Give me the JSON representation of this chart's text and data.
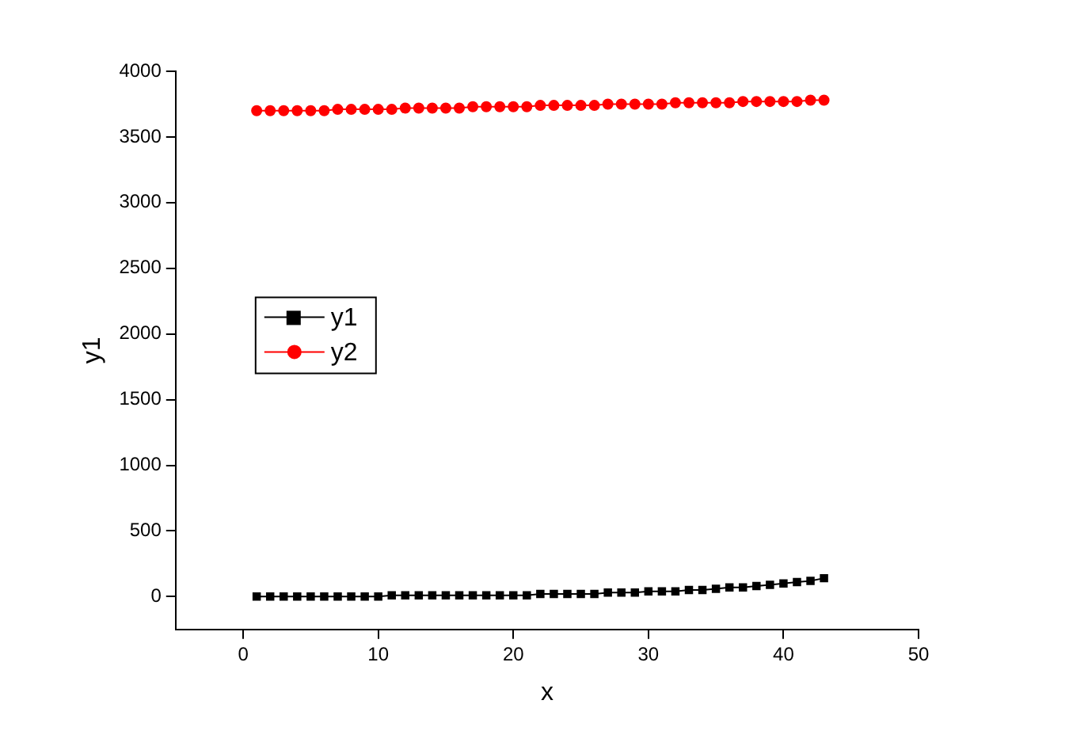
{
  "chart_data": {
    "type": "line",
    "xlabel": "x",
    "ylabel": "y1",
    "x": [
      1,
      2,
      3,
      4,
      5,
      6,
      7,
      8,
      9,
      10,
      11,
      12,
      13,
      14,
      15,
      16,
      17,
      18,
      19,
      20,
      21,
      22,
      23,
      24,
      25,
      26,
      27,
      28,
      29,
      30,
      31,
      32,
      33,
      34,
      35,
      36,
      37,
      38,
      39,
      40,
      41,
      42,
      43
    ],
    "series": [
      {
        "name": "y1",
        "color": "#000000",
        "marker": "square",
        "values": [
          0,
          0,
          0,
          0,
          0,
          0,
          0,
          0,
          0,
          0,
          10,
          10,
          10,
          10,
          10,
          10,
          10,
          10,
          10,
          10,
          10,
          20,
          20,
          20,
          20,
          20,
          30,
          30,
          30,
          40,
          40,
          40,
          50,
          50,
          60,
          70,
          70,
          80,
          90,
          100,
          110,
          120,
          140
        ]
      },
      {
        "name": "y2",
        "color": "#ff0000",
        "marker": "circle",
        "values": [
          3700,
          3700,
          3700,
          3700,
          3700,
          3700,
          3710,
          3710,
          3710,
          3710,
          3710,
          3720,
          3720,
          3720,
          3720,
          3720,
          3730,
          3730,
          3730,
          3730,
          3730,
          3740,
          3740,
          3740,
          3740,
          3740,
          3750,
          3750,
          3750,
          3750,
          3750,
          3760,
          3760,
          3760,
          3760,
          3760,
          3770,
          3770,
          3770,
          3770,
          3770,
          3780,
          3780
        ]
      }
    ],
    "xlim": [
      -5,
      50
    ],
    "xticks": [
      0,
      10,
      20,
      30,
      40,
      50
    ],
    "ylim": [
      -250,
      4000
    ],
    "yticks": [
      0,
      500,
      1000,
      1500,
      2000,
      2500,
      3000,
      3500,
      4000
    ],
    "grid": false,
    "legend": "left",
    "line_style": "solid"
  }
}
